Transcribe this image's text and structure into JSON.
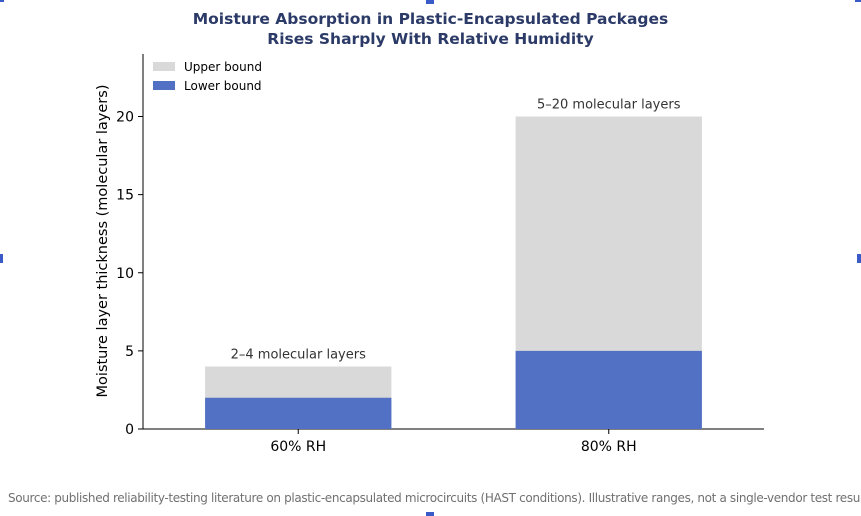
{
  "title_line1": "Moisture Absorption in Plastic-Encapsulated Packages",
  "title_line2": "Rises Sharply With Relative Humidity",
  "source": "Source: published reliability-testing literature on plastic-encapsulated microcircuits (HAST conditions). Illustrative ranges, not a single-vendor test result.",
  "chart_data": {
    "type": "bar",
    "stacked": true,
    "categories": [
      "60% RH",
      "80% RH"
    ],
    "series": [
      {
        "name": "Lower bound",
        "values": [
          2,
          5
        ],
        "color": "#5271c4"
      },
      {
        "name": "Upper bound",
        "values": [
          4,
          20
        ],
        "color": "#d9d9d9"
      }
    ],
    "bar_labels": [
      "2–4 molecular layers",
      "5–20 molecular layers"
    ],
    "xlabel": "",
    "ylabel": "Moisture layer thickness (molecular layers)",
    "ylim": [
      0,
      24
    ],
    "yticks": [
      0,
      5,
      10,
      15,
      20
    ],
    "grid": false,
    "legend": {
      "position": "top-left",
      "entries": [
        "Upper bound",
        "Lower bound"
      ]
    }
  }
}
